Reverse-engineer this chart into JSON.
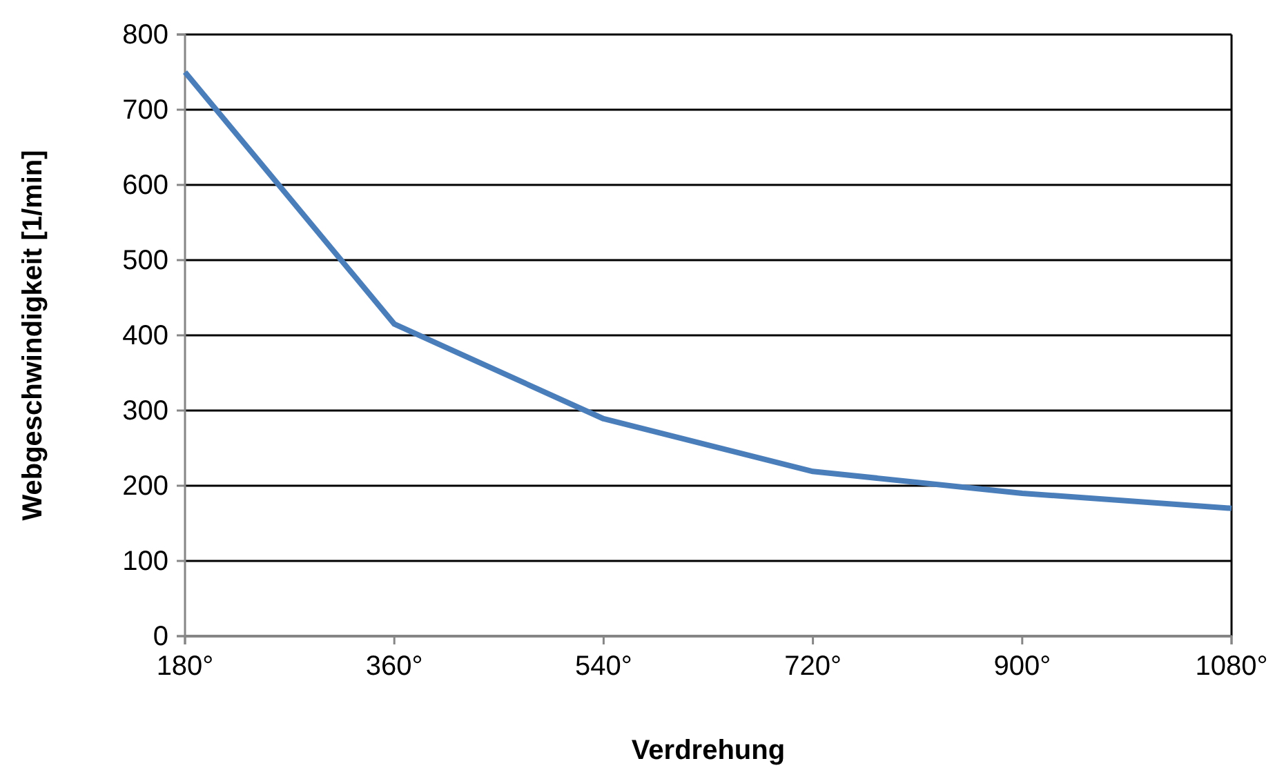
{
  "chart_data": {
    "type": "line",
    "xlabel": "Verdrehung",
    "ylabel": "Webgeschwindigkeit [1/min]",
    "x": [
      180,
      360,
      540,
      720,
      900,
      1080
    ],
    "series": [
      {
        "color": "#4a7ebb",
        "values": [
          750,
          415,
          289,
          219,
          190,
          170
        ]
      }
    ],
    "xlim": [
      180,
      1080
    ],
    "xticks": [
      {
        "value": 180,
        "label": "180°"
      },
      {
        "value": 360,
        "label": "360°"
      },
      {
        "value": 540,
        "label": "540°"
      },
      {
        "value": 720,
        "label": "720°"
      },
      {
        "value": 900,
        "label": "900°"
      },
      {
        "value": 1080,
        "label": "1080°"
      }
    ],
    "ylim": [
      0,
      800
    ],
    "yticks": [
      0,
      100,
      200,
      300,
      400,
      500,
      600,
      700,
      800
    ],
    "grid": "y",
    "marker": "none",
    "line_style": "solid"
  }
}
